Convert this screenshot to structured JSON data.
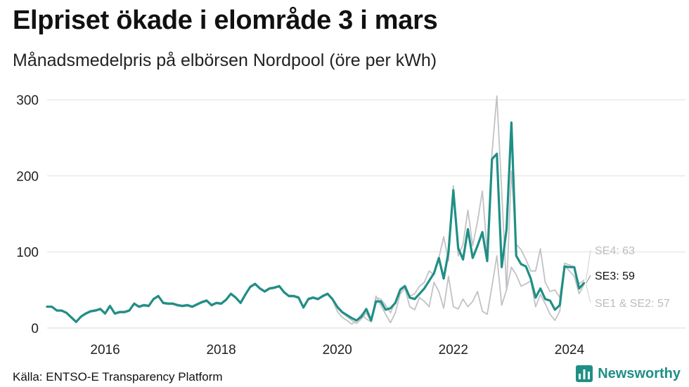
{
  "header": {
    "title": "Elpriset ökade i elområde 3 i mars",
    "subtitle": "Månadsmedelpris på elbörsen Nordpool (öre per kWh)"
  },
  "footer": {
    "source": "Källa: ENTSO-E Transparency Platform",
    "brand": "Newsworthy",
    "brand_icon": "bar-chart-logo-icon"
  },
  "colors": {
    "highlight": "#1f8f86",
    "context": "#c2c2c6",
    "grid": "#e3e3e3",
    "brand": "#1f8f86"
  },
  "chart_data": {
    "type": "line",
    "title": "Elpriset ökade i elområde 3 i mars",
    "subtitle": "Månadsmedelpris på elbörsen Nordpool (öre per kWh)",
    "xlabel": "",
    "ylabel": "",
    "x_start": "2015-01",
    "x_end": "2024-03",
    "xlim": [
      "2015-01",
      "2026-01"
    ],
    "ylim": [
      0,
      310
    ],
    "y_ticks": [
      0,
      100,
      200,
      300
    ],
    "x_ticks": [
      "2016",
      "2018",
      "2020",
      "2022",
      "2024"
    ],
    "grid": "horizontal",
    "series": [
      {
        "name": "SE3",
        "label": "SE3: 59",
        "values": [
          28,
          28,
          23,
          23,
          20,
          14,
          8,
          15,
          19,
          22,
          23,
          25,
          19,
          29,
          19,
          21,
          21,
          23,
          32,
          28,
          30,
          29,
          38,
          42,
          33,
          32,
          32,
          30,
          29,
          30,
          28,
          31,
          34,
          36,
          30,
          33,
          32,
          37,
          45,
          40,
          33,
          44,
          54,
          58,
          52,
          48,
          52,
          53,
          55,
          47,
          42,
          42,
          40,
          27,
          38,
          40,
          38,
          42,
          45,
          38,
          28,
          21,
          17,
          13,
          10,
          15,
          25,
          10,
          35,
          35,
          24,
          26,
          33,
          50,
          55,
          40,
          38,
          45,
          52,
          62,
          72,
          92,
          65,
          100,
          181,
          105,
          90,
          130,
          92,
          108,
          126,
          88,
          222,
          229,
          80,
          130,
          270,
          95,
          84,
          81,
          65,
          40,
          52,
          38,
          36,
          24,
          30,
          81,
          80,
          80,
          52,
          59
        ]
      },
      {
        "name": "SE4",
        "label": "SE4: 63",
        "values": [
          29,
          28,
          24,
          23,
          20,
          15,
          9,
          16,
          20,
          23,
          24,
          26,
          20,
          30,
          20,
          22,
          22,
          24,
          33,
          29,
          31,
          30,
          39,
          43,
          34,
          33,
          33,
          31,
          30,
          31,
          29,
          32,
          35,
          37,
          31,
          34,
          33,
          38,
          46,
          41,
          34,
          45,
          55,
          59,
          53,
          49,
          53,
          54,
          56,
          48,
          43,
          43,
          41,
          28,
          39,
          41,
          39,
          43,
          46,
          39,
          26,
          20,
          15,
          10,
          6,
          12,
          20,
          8,
          40,
          38,
          30,
          20,
          35,
          52,
          56,
          42,
          45,
          55,
          60,
          75,
          70,
          92,
          120,
          88,
          187,
          95,
          110,
          155,
          108,
          140,
          180,
          100,
          230,
          305,
          180,
          50,
          206,
          110,
          103,
          90,
          75,
          75,
          104,
          60,
          48,
          50,
          40,
          85,
          83,
          80,
          58,
          63
        ]
      },
      {
        "name": "SE1 & SE2",
        "label": "SE1 & SE2: 57",
        "values": [
          28,
          27,
          23,
          22,
          19,
          13,
          7,
          14,
          18,
          21,
          22,
          24,
          18,
          28,
          18,
          20,
          20,
          22,
          31,
          27,
          29,
          28,
          37,
          41,
          32,
          31,
          31,
          29,
          28,
          29,
          27,
          30,
          33,
          35,
          29,
          32,
          31,
          36,
          44,
          39,
          32,
          43,
          53,
          57,
          51,
          47,
          51,
          52,
          54,
          46,
          41,
          41,
          39,
          26,
          37,
          39,
          37,
          41,
          44,
          37,
          22,
          14,
          10,
          5,
          10,
          18,
          12,
          8,
          42,
          30,
          18,
          7,
          20,
          45,
          52,
          28,
          24,
          40,
          35,
          28,
          60,
          48,
          26,
          68,
          28,
          25,
          38,
          28,
          35,
          48,
          22,
          18,
          55,
          95,
          30,
          50,
          80,
          70,
          55,
          58,
          62,
          28,
          44,
          32,
          18,
          10,
          22,
          82,
          75,
          68,
          45,
          57
        ]
      }
    ]
  }
}
